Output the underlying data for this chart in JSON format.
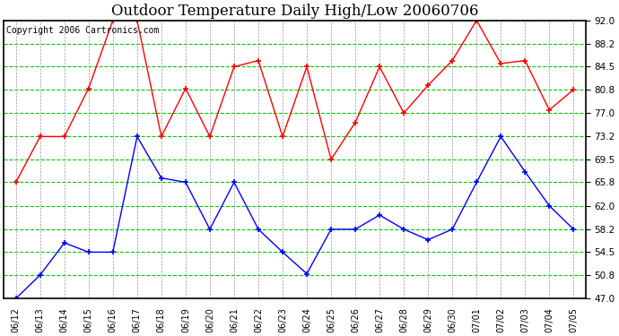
{
  "title": "Outdoor Temperature Daily High/Low 20060706",
  "copyright": "Copyright 2006 Cartronics.com",
  "dates": [
    "06/12",
    "06/13",
    "06/14",
    "06/15",
    "06/16",
    "06/17",
    "06/18",
    "06/19",
    "06/20",
    "06/21",
    "06/22",
    "06/23",
    "06/24",
    "06/25",
    "06/26",
    "06/27",
    "06/28",
    "06/29",
    "06/30",
    "07/01",
    "07/02",
    "07/03",
    "07/04",
    "07/05"
  ],
  "high_temps": [
    65.8,
    73.2,
    73.2,
    81.0,
    92.0,
    92.0,
    73.2,
    81.0,
    73.2,
    84.5,
    85.5,
    73.2,
    84.5,
    69.5,
    75.5,
    84.5,
    77.0,
    81.5,
    85.5,
    92.0,
    85.0,
    85.5,
    77.5,
    80.8
  ],
  "low_temps": [
    47.0,
    50.8,
    56.0,
    54.5,
    54.5,
    73.2,
    66.5,
    65.8,
    58.2,
    65.8,
    58.2,
    54.5,
    51.0,
    58.2,
    58.2,
    60.5,
    58.2,
    56.5,
    58.2,
    65.8,
    73.2,
    67.5,
    62.0,
    58.2
  ],
  "high_color": "#ff0000",
  "low_color": "#0000ff",
  "bg_color": "#ffffff",
  "plot_bg_color": "#ffffff",
  "grid_color_green": "#00cc00",
  "grid_color_grey": "#999999",
  "ylim": [
    47.0,
    92.0
  ],
  "yticks": [
    47.0,
    50.8,
    54.5,
    58.2,
    62.0,
    65.8,
    69.5,
    73.2,
    77.0,
    80.8,
    84.5,
    88.2,
    92.0
  ],
  "title_fontsize": 12,
  "copyright_fontsize": 7,
  "marker": "+"
}
